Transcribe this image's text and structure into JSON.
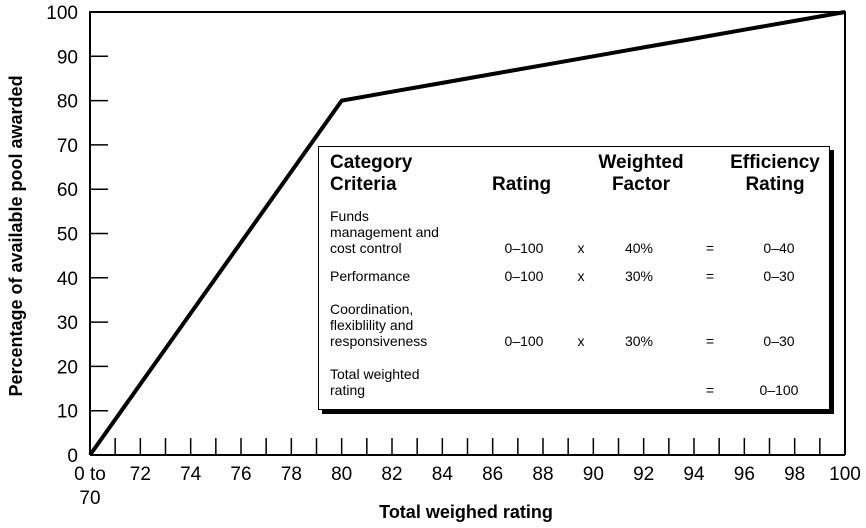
{
  "chart_data": {
    "type": "line",
    "xlabel": "Total weighed rating",
    "ylabel": "Percentage of available pool awarded",
    "xlim": [
      70,
      100
    ],
    "ylim": [
      0,
      100
    ],
    "x_tick_labels": [
      "0 to",
      "70",
      "72",
      "74",
      "76",
      "78",
      "80",
      "82",
      "84",
      "86",
      "88",
      "90",
      "92",
      "94",
      "96",
      "98",
      "100"
    ],
    "y_tick_labels": [
      "0",
      "10",
      "20",
      "30",
      "40",
      "50",
      "60",
      "70",
      "80",
      "90",
      "100"
    ],
    "x": [
      70,
      80,
      82,
      84,
      86,
      88,
      90,
      92,
      94,
      96,
      98,
      100
    ],
    "values": [
      0,
      80,
      82,
      84,
      86,
      88,
      90,
      92,
      94,
      96,
      98,
      100
    ],
    "grid": false
  },
  "table": {
    "headers": {
      "category_1": "Category",
      "category_2": "Criteria",
      "rating": "Rating",
      "weighted_1": "Weighted",
      "weighted_2": "Factor",
      "efficiency_1": "Efficiency",
      "efficiency_2": "Rating"
    },
    "rows": [
      {
        "l1": "Funds",
        "l2": "management and",
        "l3": "cost control",
        "rating": "0–100",
        "op": "x",
        "factor": "40%",
        "eq": "=",
        "eff": "0–40"
      },
      {
        "l1": "Performance",
        "rating": "0–100",
        "op": "x",
        "factor": "30%",
        "eq": "=",
        "eff": "0–30"
      },
      {
        "l1": "Coordination,",
        "l2": "flexiblility and",
        "l3": "responsiveness",
        "rating": "0–100",
        "op": "x",
        "factor": "30%",
        "eq": "=",
        "eff": "0–30"
      },
      {
        "l1": "Total weighted",
        "l2": "rating",
        "eq": "=",
        "eff": "0–100"
      }
    ]
  }
}
